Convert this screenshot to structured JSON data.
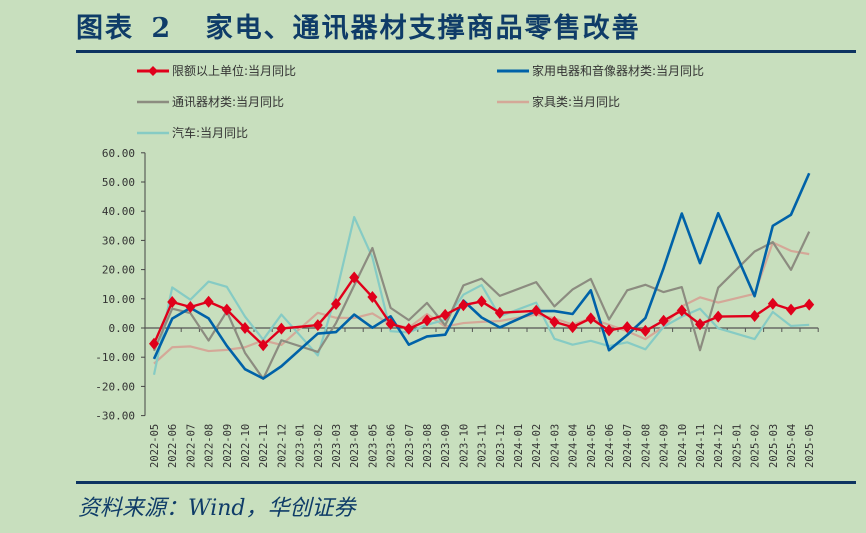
{
  "header": {
    "figure_label": "图表",
    "figure_number": "2",
    "title": "家电、通讯器材支撑商品零售改善"
  },
  "footer": {
    "source": "资料来源：Wind，华创证券"
  },
  "colors": {
    "background": "#c8dfbe",
    "title": "#0f3c68",
    "rule": "#0d3461",
    "retail_total": "#e0001b",
    "appliances": "#0062a8",
    "communication": "#8c8c80",
    "furniture": "#d4a898",
    "auto": "#86cbc4"
  },
  "chart_data": {
    "type": "line",
    "title": "家电、通讯器材支撑商品零售改善",
    "xlabel": "",
    "ylabel": "",
    "ylim": [
      -30,
      60
    ],
    "yticks": [
      "60.00",
      "50.00",
      "40.00",
      "30.00",
      "20.00",
      "10.00",
      "0.00",
      "-10.00",
      "-20.00",
      "-30.00"
    ],
    "grid": false,
    "legend_position": "top",
    "x": [
      "2022-05",
      "2022-06",
      "2022-07",
      "2022-08",
      "2022-09",
      "2022-10",
      "2022-11",
      "2022-12",
      "2023-01",
      "2023-02",
      "2023-03",
      "2023-04",
      "2023-05",
      "2023-06",
      "2023-07",
      "2023-08",
      "2023-09",
      "2023-10",
      "2023-11",
      "2023-12",
      "2024-01",
      "2024-02",
      "2024-03",
      "2024-04",
      "2024-05",
      "2024-06",
      "2024-07",
      "2024-08",
      "2024-09",
      "2024-10",
      "2024-11",
      "2024-12",
      "2025-01",
      "2025-02",
      "2025-03",
      "2025-04",
      "2025-05"
    ],
    "series": [
      {
        "name": "限额以上单位:当月同比",
        "key": "retail_total",
        "marker": "diamond",
        "values": [
          -5.4,
          8.9,
          7.2,
          9.0,
          6.3,
          0.0,
          -5.9,
          -0.2,
          null,
          1.0,
          8.2,
          17.3,
          10.6,
          1.4,
          -0.3,
          2.6,
          4.5,
          7.8,
          9.1,
          5.2,
          null,
          5.9,
          2.1,
          0.3,
          3.3,
          -0.8,
          0.3,
          -1.0,
          2.5,
          6.0,
          1.3,
          3.9,
          null,
          4.1,
          8.3,
          6.3,
          8.0
        ]
      },
      {
        "name": "家用电器和音像器材类:当月同比",
        "key": "appliances",
        "values": [
          -10.6,
          3.2,
          6.9,
          3.3,
          -6.1,
          -14.1,
          -17.3,
          -13.1,
          null,
          -1.9,
          -1.4,
          4.6,
          0.1,
          4.0,
          -5.7,
          -2.9,
          -2.3,
          9.4,
          3.6,
          0.2,
          null,
          5.8,
          5.8,
          4.8,
          12.9,
          -7.6,
          -2.4,
          3.4,
          20.5,
          39.2,
          22.2,
          39.3,
          null,
          10.9,
          35.0,
          38.8,
          53.0
        ]
      },
      {
        "name": "通讯器材类:当月同比",
        "key": "communication",
        "values": [
          -7.8,
          6.6,
          5.1,
          -4.3,
          5.7,
          -8.5,
          -17.4,
          -4.2,
          null,
          -8.2,
          1.7,
          14.6,
          27.4,
          6.9,
          2.7,
          8.6,
          0.9,
          14.6,
          16.9,
          11.0,
          null,
          15.7,
          7.4,
          13.2,
          16.8,
          2.9,
          12.9,
          14.8,
          12.3,
          14.0,
          -7.6,
          13.8,
          null,
          26.2,
          29.4,
          19.9,
          33.0
        ]
      },
      {
        "name": "家具类:当月同比",
        "key": "furniture",
        "values": [
          -12.2,
          -6.6,
          -6.3,
          -7.9,
          -7.5,
          -6.6,
          -4.2,
          -5.8,
          null,
          5.2,
          3.5,
          3.4,
          5.0,
          1.2,
          0.1,
          4.8,
          0.5,
          1.7,
          2.1,
          2.4,
          null,
          4.6,
          3.3,
          1.2,
          3.3,
          1.1,
          -1.1,
          -3.8,
          0.4,
          7.4,
          10.5,
          8.7,
          null,
          11.7,
          29.3,
          26.4,
          25.3
        ]
      },
      {
        "name": "汽车:当月同比",
        "key": "auto",
        "values": [
          -16.0,
          13.9,
          9.7,
          15.9,
          14.1,
          3.9,
          -4.0,
          4.6,
          null,
          -9.4,
          11.5,
          38.0,
          24.2,
          -1.1,
          -1.5,
          1.1,
          2.8,
          11.4,
          14.7,
          4.0,
          null,
          8.7,
          -3.7,
          -5.7,
          -4.4,
          -6.2,
          -4.9,
          -7.3,
          0.4,
          3.9,
          6.6,
          -0.1,
          null,
          -3.8,
          5.5,
          0.7,
          1.1
        ]
      }
    ]
  },
  "legend": [
    {
      "label": "限额以上单位:当月同比",
      "key": "retail_total"
    },
    {
      "label": "家用电器和音像器材类:当月同比",
      "key": "appliances"
    },
    {
      "label": "通讯器材类:当月同比",
      "key": "communication"
    },
    {
      "label": "家具类:当月同比",
      "key": "furniture"
    },
    {
      "label": "汽车:当月同比",
      "key": "auto"
    }
  ]
}
